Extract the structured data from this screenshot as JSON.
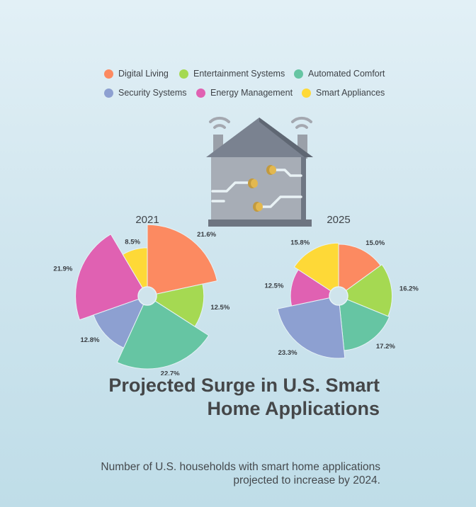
{
  "colors": {
    "Digital Living": "#fc8a61",
    "Entertainment Systems": "#a5d952",
    "Automated Comfort": "#66c5a3",
    "Security Systems": "#8da0d1",
    "Energy Management": "#e061b2",
    "Smart Appliances": "#fed937"
  },
  "legend": {
    "items": [
      "Digital Living",
      "Entertainment Systems",
      "Automated Comfort",
      "Security Systems",
      "Energy Management",
      "Smart Appliances"
    ]
  },
  "header": {
    "title": "Projected Surge in U.S. Smart Home Applications",
    "subtitle": "Number of U.S. households with smart home applications projected to increase by 2024."
  },
  "chart_data": [
    {
      "type": "pie",
      "title": "2021",
      "variant": "nightingale-rose-donut",
      "categories": [
        "Digital Living",
        "Entertainment Systems",
        "Automated Comfort",
        "Security Systems",
        "Energy Management",
        "Smart Appliances"
      ],
      "values": [
        21.6,
        12.5,
        22.7,
        12.8,
        21.9,
        8.5
      ],
      "labels": [
        "21.6%",
        "12.5%",
        "22.7%",
        "12.8%",
        "21.9%",
        "8.5%"
      ]
    },
    {
      "type": "pie",
      "title": "2025",
      "variant": "nightingale-rose-donut",
      "categories": [
        "Digital Living",
        "Entertainment Systems",
        "Automated Comfort",
        "Security Systems",
        "Energy Management",
        "Smart Appliances"
      ],
      "values": [
        15.0,
        16.2,
        17.2,
        23.3,
        12.5,
        15.8
      ],
      "labels": [
        "15.0%",
        "16.2%",
        "17.2%",
        "23.3%",
        "12.5%",
        "15.8%"
      ]
    }
  ]
}
